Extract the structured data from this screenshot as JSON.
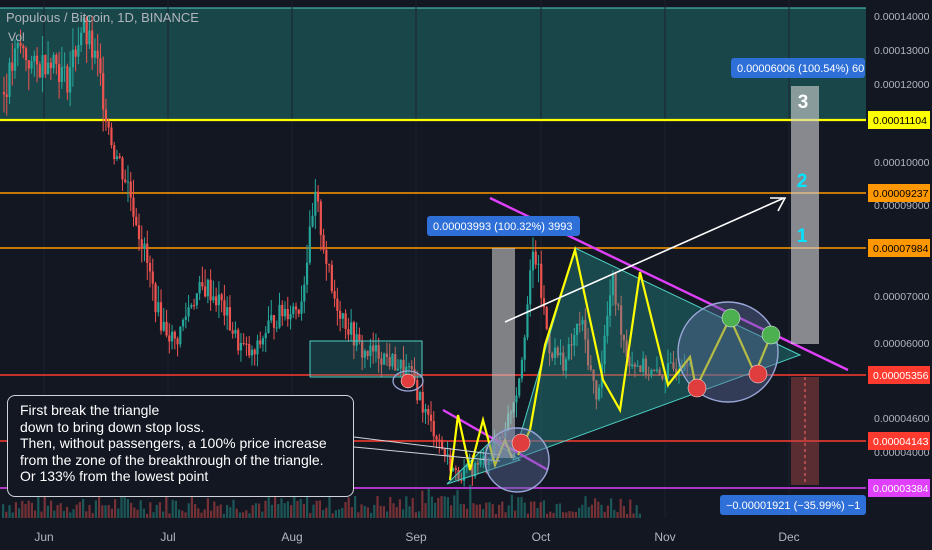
{
  "header": {
    "title": "Populous / Bitcoin, 1D, BINANCE",
    "volume_label": "Vol"
  },
  "colors": {
    "background": "#131722",
    "up": "#26a69a",
    "down": "#ef5350",
    "yellow": "#ffff00",
    "magenta": "#e040fb",
    "orange": "#ff9800",
    "teal_zone": "#26a69a",
    "label_blue": "#2962ff"
  },
  "chart_data": {
    "type": "candlestick",
    "symbol": "Populous / Bitcoin",
    "interval": "1D",
    "exchange": "BINANCE",
    "x_ticks": [
      "Jun",
      "Jul",
      "Aug",
      "Sep",
      "Oct",
      "Nov",
      "Dec"
    ],
    "y_ticks": [
      "0.00014000",
      "0.00013000",
      "0.00012000",
      "0.00010000",
      "0.00009000",
      "0.00007000",
      "0.00006000",
      "0.00005200",
      "0.00004600",
      "0.00004000"
    ],
    "ylim": [
      3.16e-05,
      1.43e-05
    ],
    "series_approx_close": [
      0.000118,
      0.000131,
      0.000124,
      0.000129,
      0.000121,
      0.000137,
      0.000125,
      0.000104,
      9.4e-05,
      7.9e-05,
      6.5e-05,
      6e-05,
      6.9e-05,
      7.2e-05,
      6.8e-05,
      6e-05,
      5.7e-05,
      6.4e-05,
      6.7e-05,
      6.8e-05,
      9.1e-05,
      7.1e-05,
      6.4e-05,
      5.8e-05,
      5.8e-05,
      5.6e-05,
      5.4e-05,
      4.7e-05,
      4.1e-05,
      3.6e-05,
      3.7e-05,
      3.9e-05,
      4.3e-05,
      5.2e-05,
      8e-05,
      5.9e-05,
      5.6e-05,
      6.5e-05,
      4.8e-05,
      7.3e-05,
      5.7e-05,
      5.5e-05,
      5.3e-05,
      5.5e-05,
      5.8e-05
    ],
    "levels": [
      {
        "label": "0.00011104",
        "value": 0.00011104,
        "color": "#ffff00",
        "label_bg": "#ffff00",
        "label_fg": "#000000"
      },
      {
        "label": "0.00009237",
        "value": 9.237e-05,
        "color": "#ff9800",
        "label_bg": "#ff9800",
        "label_fg": "#000000"
      },
      {
        "label": "0.00007984",
        "value": 7.984e-05,
        "color": "#ff9800",
        "label_bg": "#ff9800",
        "label_fg": "#000000"
      },
      {
        "label": "0.00005356",
        "value": 5.356e-05,
        "color": "#ff3b30",
        "label_bg": "#ff3b30",
        "label_fg": "#ffffff"
      },
      {
        "label": "0.00004143",
        "value": 4.143e-05,
        "color": "#ff3b30",
        "label_bg": "#ff3b30",
        "label_fg": "#ffffff"
      },
      {
        "label": "0.00003384",
        "value": 3.384e-05,
        "color": "#e040fb",
        "label_bg": "#e040fb",
        "label_fg": "#ffffff"
      }
    ],
    "measure_labels": [
      "0.00006006 (100.54%) 60",
      "0.00003993 (100.32%) 3993",
      "−0.00001921 (−35.99%) −1"
    ],
    "targets": [
      "1",
      "2",
      "3"
    ],
    "note": "First break the triangle\ndown to bring down stop loss.\nThen, without passengers, a 100% price increase\nfrom the zone of the breakthrough of the triangle.\nOr 133% from the lowest point"
  }
}
